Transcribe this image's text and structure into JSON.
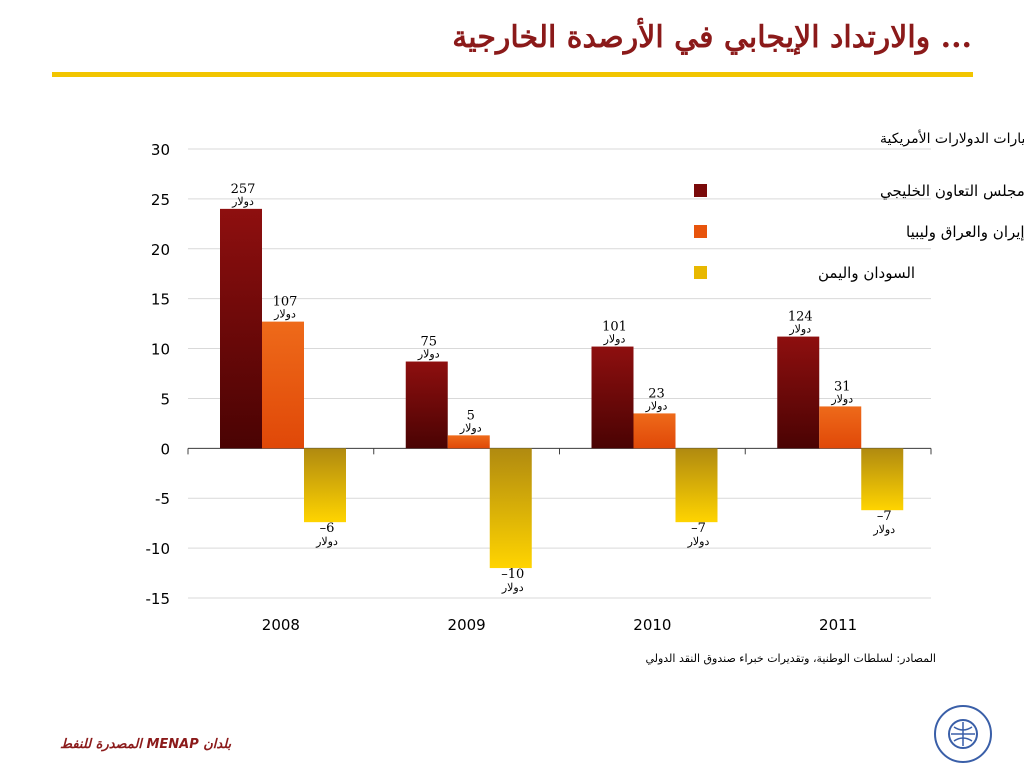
{
  "slide": {
    "title": "... والارتداد الإيجابي في الأرصدة الخارجية",
    "source": "المصادر: لسلطات الوطنية، وتقديرات خبراء صندوق النقد الدولي",
    "footer": "بلدان MENAP المصدرة للنفط"
  },
  "colors": {
    "accent_rule": "#f2c500",
    "title": "#8b1a1a",
    "series": [
      "#7a0a0a",
      "#e8540c",
      "#f0c400"
    ]
  },
  "chart_data": {
    "type": "bar",
    "title": "أرصدة الحسابات الجارية، % من إجمالي الناتج المحلي وبمليارات الدولارات الأمريكية",
    "categories": [
      "2008",
      "2009",
      "2010",
      "2011"
    ],
    "ylim": [
      -15,
      30
    ],
    "yticks": [
      "30",
      "25",
      "20",
      "15",
      "10",
      "5",
      "0",
      "-5",
      "-10",
      "-15"
    ],
    "grid": true,
    "legend_position": "top-right",
    "unit_label": "دولار",
    "series": [
      {
        "name": "مجلس التعاون الخليجي",
        "values": [
          24,
          8.7,
          10.2,
          11.2
        ],
        "labels": [
          "257",
          "75",
          "101",
          "124"
        ]
      },
      {
        "name": "الجزائر وإيران والعراق وليبيا",
        "values": [
          12.7,
          1.3,
          3.5,
          4.2
        ],
        "labels": [
          "107",
          "5",
          "23",
          "31"
        ]
      },
      {
        "name": "السودان واليمن",
        "values": [
          -7.4,
          -12,
          -7.4,
          -6.2
        ],
        "labels": [
          "–6",
          "–10",
          "–7",
          "–7"
        ]
      }
    ]
  }
}
